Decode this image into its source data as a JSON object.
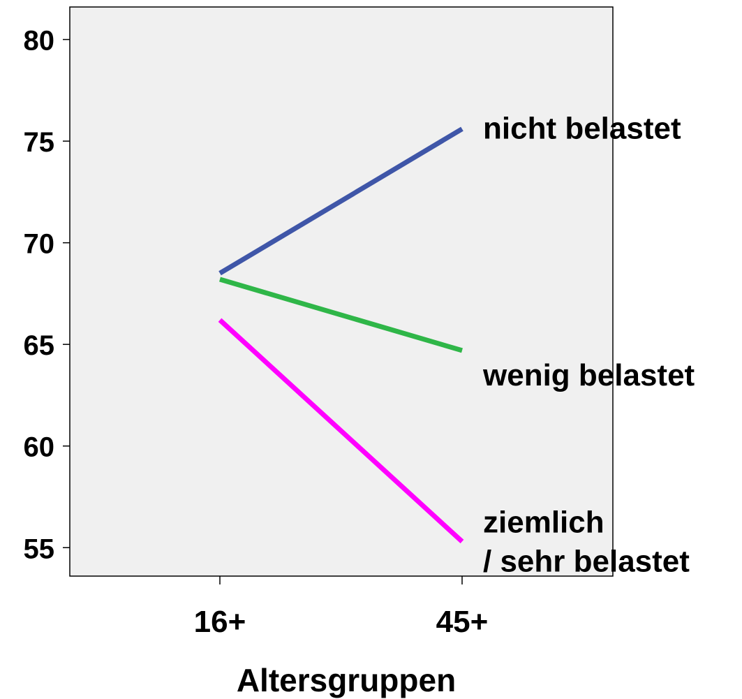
{
  "chart_data": {
    "type": "line",
    "xlabel": "Altersgruppen",
    "ylabel": "",
    "categories": [
      "16+",
      "45+"
    ],
    "ylim": [
      53.6,
      81.6
    ],
    "yticks": [
      55,
      60,
      65,
      70,
      75,
      80
    ],
    "grid": false,
    "plot_background": "#f0f0f0",
    "series": [
      {
        "name": "nicht belastet",
        "values": [
          68.5,
          75.6
        ],
        "color": "#3f56a8",
        "label_lines": [
          "nicht belastet"
        ]
      },
      {
        "name": "wenig belastet",
        "values": [
          68.2,
          64.7
        ],
        "color": "#2fb648",
        "label_lines": [
          "wenig belastet"
        ]
      },
      {
        "name": "ziemlich / sehr belastet",
        "values": [
          66.2,
          55.3
        ],
        "color": "#ff00ff",
        "label_lines": [
          "ziemlich",
          "/ sehr belastet"
        ]
      }
    ]
  }
}
